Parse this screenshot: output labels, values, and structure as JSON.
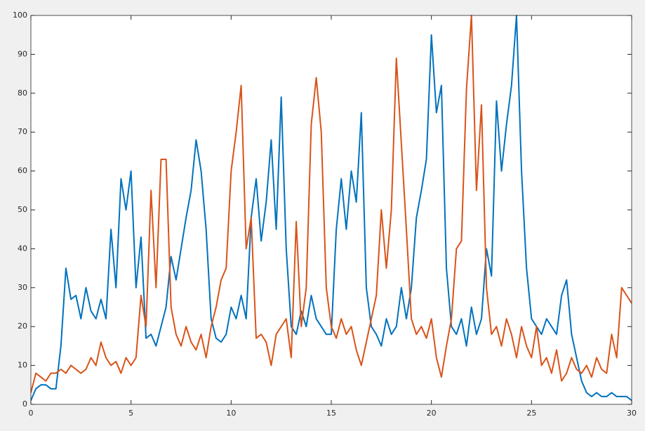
{
  "chart_data": {
    "type": "line",
    "x": [
      0,
      0.25,
      0.5,
      0.75,
      1,
      1.25,
      1.5,
      1.75,
      2,
      2.25,
      2.5,
      2.75,
      3,
      3.25,
      3.5,
      3.75,
      4,
      4.25,
      4.5,
      4.75,
      5,
      5.25,
      5.5,
      5.75,
      6,
      6.25,
      6.5,
      6.75,
      7,
      7.25,
      7.5,
      7.75,
      8,
      8.25,
      8.5,
      8.75,
      9,
      9.25,
      9.5,
      9.75,
      10,
      10.25,
      10.5,
      10.75,
      11,
      11.25,
      11.5,
      11.75,
      12,
      12.25,
      12.5,
      12.75,
      13,
      13.25,
      13.5,
      13.75,
      14,
      14.25,
      14.5,
      14.75,
      15,
      15.25,
      15.5,
      15.75,
      16,
      16.25,
      16.5,
      16.75,
      17,
      17.25,
      17.5,
      17.75,
      18,
      18.25,
      18.5,
      18.75,
      19,
      19.25,
      19.5,
      19.75,
      20,
      20.25,
      20.5,
      20.75,
      21,
      21.25,
      21.5,
      21.75,
      22,
      22.25,
      22.5,
      22.75,
      23,
      23.25,
      23.5,
      23.75,
      24,
      24.25,
      24.5,
      24.75,
      25,
      25.25,
      25.5,
      25.75,
      26,
      26.25,
      26.5,
      26.75,
      27,
      27.25,
      27.5,
      27.75,
      28,
      28.25,
      28.5,
      28.75,
      29,
      29.25,
      29.5,
      29.75,
      30
    ],
    "series": [
      {
        "color": "#0072bd",
        "values": [
          1,
          4,
          5,
          5,
          4,
          4,
          15,
          35,
          27,
          28,
          22,
          30,
          24,
          22,
          27,
          22,
          45,
          30,
          58,
          50,
          60,
          30,
          43,
          17,
          18,
          15,
          20,
          25,
          38,
          32,
          40,
          48,
          55,
          68,
          60,
          45,
          22,
          17,
          16,
          18,
          25,
          22,
          28,
          22,
          48,
          58,
          42,
          52,
          68,
          45,
          79,
          40,
          20,
          18,
          24,
          20,
          28,
          22,
          20,
          18,
          18,
          45,
          58,
          45,
          60,
          52,
          75,
          30,
          20,
          18,
          15,
          22,
          18,
          20,
          30,
          22,
          30,
          48,
          55,
          63,
          95,
          75,
          82,
          35,
          20,
          18,
          22,
          15,
          25,
          18,
          22,
          40,
          33,
          78,
          60,
          72,
          82,
          100,
          60,
          35,
          22,
          20,
          18,
          22,
          20,
          18,
          28,
          32,
          18,
          12,
          6,
          3,
          2,
          3,
          2,
          2,
          3,
          2,
          2,
          2,
          1
        ]
      },
      {
        "color": "#d95319",
        "values": [
          3,
          8,
          7,
          6,
          8,
          8,
          9,
          8,
          10,
          9,
          8,
          9,
          12,
          10,
          16,
          12,
          10,
          11,
          8,
          12,
          10,
          12,
          28,
          20,
          55,
          30,
          63,
          63,
          25,
          18,
          15,
          20,
          16,
          14,
          18,
          12,
          20,
          25,
          32,
          35,
          60,
          70,
          82,
          40,
          48,
          17,
          18,
          16,
          10,
          18,
          20,
          22,
          12,
          47,
          20,
          30,
          72,
          84,
          70,
          30,
          20,
          17,
          22,
          18,
          20,
          14,
          10,
          16,
          22,
          28,
          50,
          35,
          50,
          89,
          67,
          45,
          22,
          18,
          20,
          17,
          22,
          12,
          7,
          15,
          22,
          40,
          42,
          81,
          100,
          55,
          77,
          30,
          18,
          20,
          15,
          22,
          18,
          12,
          20,
          15,
          12,
          20,
          10,
          12,
          8,
          14,
          6,
          8,
          12,
          9,
          8,
          10,
          7,
          12,
          9,
          8,
          18,
          12,
          30,
          28,
          26
        ]
      }
    ],
    "xlim": [
      0,
      30
    ],
    "ylim": [
      0,
      100
    ],
    "xticks": [
      0,
      5,
      10,
      15,
      20,
      25,
      30
    ],
    "yticks": [
      0,
      10,
      20,
      30,
      40,
      50,
      60,
      70,
      80,
      90,
      100
    ],
    "grid": false
  }
}
